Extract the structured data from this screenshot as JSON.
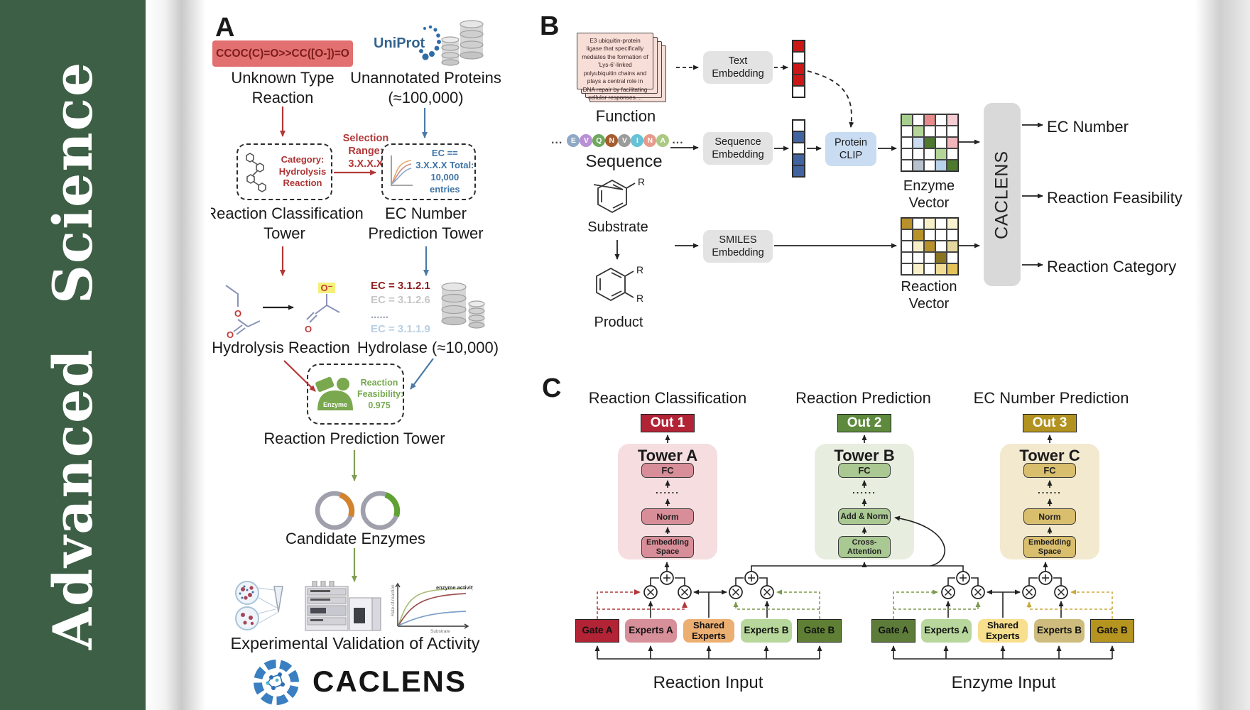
{
  "sidebar": {
    "title": "Advanced Science",
    "bg_color": "#3d5f45"
  },
  "panelA": {
    "label": "A",
    "smiles_box": "CCOC(C)=O>>CC([O-])=O",
    "uniprot": "UniProt",
    "unknown_reaction": "Unknown Type Reaction",
    "unannotated_proteins": "Unannotated Proteins (≈100,000)",
    "category_box": "Category: Hydrolysis Reaction",
    "selection_range": "Selection Range: 3.X.X.X",
    "ec_filter_box": "EC == 3.X.X.X Total: 10,000 entries",
    "classification_tower": "Reaction Classification Tower",
    "ec_prediction_tower": "EC Number Prediction Tower",
    "hydrolysis_reaction": "Hydrolysis Reaction",
    "atom_o": "O",
    "atom_o_minus": "O⁻",
    "ec_list": [
      {
        "text": "EC = 3.1.2.1",
        "color": "#8f1f1f"
      },
      {
        "text": "EC = 3.1.2.6",
        "color": "#c6c6c6"
      },
      {
        "text": "......",
        "color": "#9aa4b4"
      },
      {
        "text": "EC = 3.1.1.9",
        "color": "#b9cfe2"
      }
    ],
    "hydrolase": "Hydrolase (≈10,000)",
    "enzyme_badge": "Enzyme",
    "feasibility_text": "Reaction Feasibility:",
    "feasibility_value": "0.975",
    "reaction_prediction_tower": "Reaction Prediction Tower",
    "candidate_enzymes": "Candidate Enzymes",
    "experimental_validation": "Experimental Validation of Activity",
    "activity_plot": {
      "ylabel": "Rate of reaction",
      "xlabel": "Substrate",
      "annotation": "enzyme activity"
    },
    "brand": "CACLENS",
    "accent_red": "#b23838",
    "accent_blue": "#4a7ba6",
    "accent_green": "#7f9e52"
  },
  "panelB": {
    "label": "B",
    "function_card": "E3 ubiquitin-protein ligase that specifically mediates the formation of 'Lys-6'-linked polyubiquitin chains and plays a central role in DNA repair by facilitating cellular responses....",
    "function_label": "Function",
    "ellipsis": "...",
    "residues": [
      {
        "letter": "E",
        "color": "#8fa8c6"
      },
      {
        "letter": "V",
        "color": "#b98fd6"
      },
      {
        "letter": "Q",
        "color": "#6fa85e"
      },
      {
        "letter": "N",
        "color": "#a55c2e"
      },
      {
        "letter": "V",
        "color": "#9b9b9b"
      },
      {
        "letter": "I",
        "color": "#66c2d6"
      },
      {
        "letter": "N",
        "color": "#e79a8b"
      },
      {
        "letter": "A",
        "color": "#abc983"
      }
    ],
    "sequence_label": "Sequence",
    "substrate_label": "Substrate",
    "product_label": "Product",
    "r_group": "R",
    "text_embedding": "Text Embedding",
    "sequence_embedding": "Sequence Embedding",
    "smiles_embedding": "SMILES Embedding",
    "protein_clip": "Protein CLIP",
    "text_vector": [
      "#cc1717",
      "#ffffff",
      "#cc1717",
      "#cc1717",
      "#ffffff"
    ],
    "sequence_vector": [
      "#ffffff",
      "#41639f",
      "#ffffff",
      "#41639f",
      "#41639f"
    ],
    "enzyme_matrix": [
      [
        "#a6cf8d",
        "#ffffff",
        "#e8898b",
        "#ffffff",
        "#f6cdd3"
      ],
      [
        "#ffffff",
        "#b3d698",
        "#ffffff",
        "#ffffff",
        "#ffffff"
      ],
      [
        "#ffffff",
        "#cbdcf0",
        "#4d7a2f",
        "#ffffff",
        "#f2b6ba"
      ],
      [
        "#ffffff",
        "#ffffff",
        "#ffffff",
        "#b3d698",
        "#ffffff"
      ],
      [
        "#ffffff",
        "#b7c2cd",
        "#ffffff",
        "#b9d2ec",
        "#4d7a2f"
      ]
    ],
    "reaction_matrix": [
      [
        "#b8912a",
        "#ffffff",
        "#f7efc8",
        "#ffffff",
        "#f9f2d0"
      ],
      [
        "#ffffff",
        "#b8912a",
        "#ffffff",
        "#ffffff",
        "#ffffff"
      ],
      [
        "#ffffff",
        "#f7efc8",
        "#b8912a",
        "#ffffff",
        "#e6d79e"
      ],
      [
        "#ffffff",
        "#ffffff",
        "#ffffff",
        "#8a7420",
        "#ffffff"
      ],
      [
        "#ffffff",
        "#f7efc8",
        "#ffffff",
        "#f0dc94",
        "#e3c25a"
      ]
    ],
    "enzyme_vector_label": "Enzyme Vector",
    "reaction_vector_label": "Reaction Vector",
    "caclens": "CACLENS",
    "outputs": [
      "EC Number",
      "Reaction Feasibility",
      "Reaction Category"
    ]
  },
  "panelC": {
    "label": "C",
    "towers": [
      {
        "title": "Reaction Classification",
        "out": "Out 1",
        "name": "Tower A",
        "fc": "FC",
        "dots": "......",
        "mid": "Norm",
        "bottom": "Embedding Space",
        "out_bg": "#b22335",
        "panel_bg": "#f5dde0",
        "block_bg": "#d88e99"
      },
      {
        "title": "Reaction Prediction",
        "out": "Out 2",
        "name": "Tower B",
        "fc": "FC",
        "dots": "......",
        "mid": "Add & Norm",
        "bottom": "Cross-Attention",
        "out_bg": "#5d8a3d",
        "panel_bg": "#e7eedf",
        "block_bg": "#a9c892"
      },
      {
        "title": "EC Number Prediction",
        "out": "Out 3",
        "name": "Tower C",
        "fc": "FC",
        "dots": "......",
        "mid": "Norm",
        "bottom": "Embedding Space",
        "out_bg": "#b29220",
        "panel_bg": "#f2e9cf",
        "block_bg": "#d9be6e"
      }
    ],
    "groups": [
      {
        "input": "Reaction Input",
        "boxes": [
          {
            "label": "Gate A",
            "bg": "#b22335"
          },
          {
            "label": "Experts A",
            "bg": "#d78f9a"
          },
          {
            "label": "Shared Experts",
            "bg": "#ecaf72"
          },
          {
            "label": "Experts B",
            "bg": "#b8d79c"
          },
          {
            "label": "Gate B",
            "bg": "#5f7f35"
          }
        ]
      },
      {
        "input": "Enzyme Input",
        "boxes": [
          {
            "label": "Gate A",
            "bg": "#5d7c3a"
          },
          {
            "label": "Experts A",
            "bg": "#b8d79c"
          },
          {
            "label": "Shared Experts",
            "bg": "#f7df8d"
          },
          {
            "label": "Experts B",
            "bg": "#cdbc7d"
          },
          {
            "label": "Gate B",
            "bg": "#b5941f"
          }
        ]
      }
    ]
  }
}
